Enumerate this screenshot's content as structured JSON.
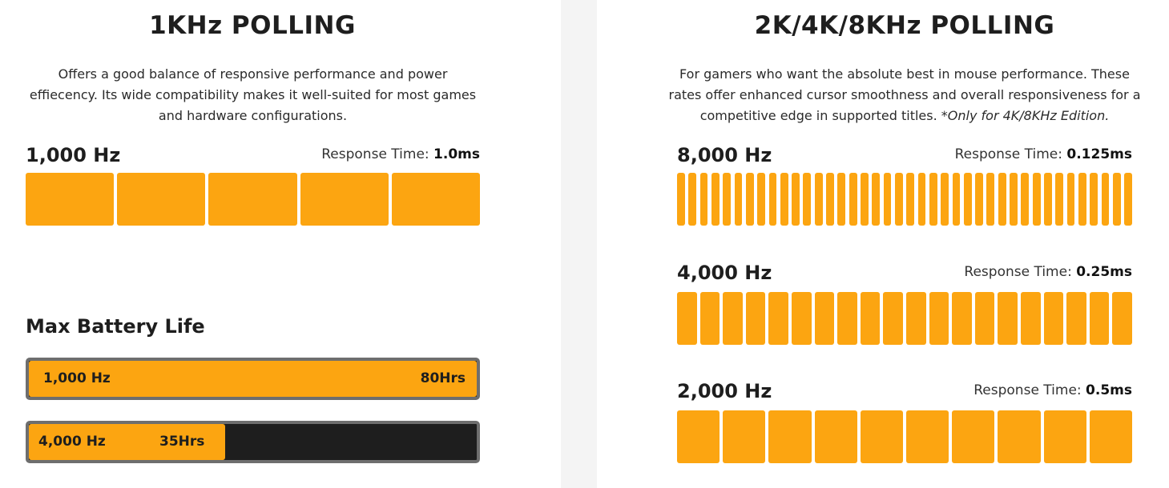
{
  "colors": {
    "accent": "#fca511",
    "track": "#1e1e1e",
    "border": "#6e6e6e"
  },
  "left": {
    "title": "1KHz POLLING",
    "description": "Offers a good balance of responsive performance and power effiecency. Its wide compatibility makes it well-suited for most games and hardware configurations.",
    "rate": {
      "label": "1,000 Hz",
      "response_label": "Response Time:",
      "response_value": "1.0ms",
      "bars": 5
    },
    "battery": {
      "title": "Max Battery Life",
      "max_hours": 80,
      "items": [
        {
          "label": "1,000 Hz",
          "value": "80Hrs",
          "hours": 80
        },
        {
          "label": "4,000 Hz",
          "value": "35Hrs",
          "hours": 35
        }
      ]
    }
  },
  "right": {
    "title": "2K/4K/8KHz POLLING",
    "description": "For gamers who want the absolute best in mouse performance. These rates offer enhanced cursor smoothness and overall responsiveness for a competitive edge in supported titles. ",
    "note": "*Only for 4K/8KHz Edition.",
    "rates": [
      {
        "label": "8,000 Hz",
        "response_label": "Response Time:",
        "response_value": "0.125ms",
        "bars": 40
      },
      {
        "label": "4,000 Hz",
        "response_label": "Response Time:",
        "response_value": "0.25ms",
        "bars": 20
      },
      {
        "label": "2,000 Hz",
        "response_label": "Response Time:",
        "response_value": "0.5ms",
        "bars": 10
      }
    ]
  }
}
